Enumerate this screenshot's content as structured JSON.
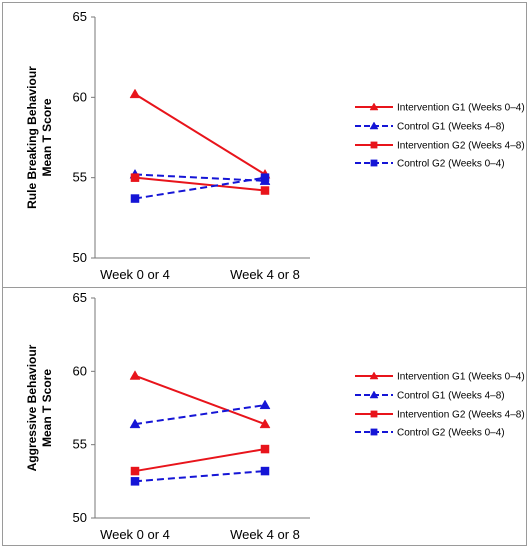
{
  "chart_data": [
    {
      "type": "line",
      "ylabel_line1": "Rule Breaking Behaviour",
      "ylabel_line2": "Mean T Score",
      "categories": [
        "Week 0 or 4",
        "Week 4 or 8"
      ],
      "ylim": [
        50,
        65
      ],
      "yticks": [
        50,
        55,
        60,
        65
      ],
      "grid": false,
      "legend_position": "right",
      "series": [
        {
          "name": "Intervention G1 (Weeks 0–4)",
          "values": [
            60.2,
            55.2
          ],
          "color": "#e8141b",
          "marker": "triangle",
          "dash": false
        },
        {
          "name": "Control G1 (Weeks 4–8)",
          "values": [
            55.2,
            54.8
          ],
          "color": "#1515d6",
          "marker": "triangle",
          "dash": true
        },
        {
          "name": "Intervention G2 (Weeks 4–8)",
          "values": [
            55.0,
            54.2
          ],
          "color": "#e8141b",
          "marker": "square",
          "dash": false
        },
        {
          "name": "Control G2 (Weeks 0–4)",
          "values": [
            53.7,
            55.0
          ],
          "color": "#1515d6",
          "marker": "square",
          "dash": true
        }
      ]
    },
    {
      "type": "line",
      "ylabel_line1": "Aggressive Behaviour",
      "ylabel_line2": "Mean T Score",
      "categories": [
        "Week 0 or 4",
        "Week 4 or 8"
      ],
      "ylim": [
        50,
        65
      ],
      "yticks": [
        50,
        55,
        60,
        65
      ],
      "grid": false,
      "legend_position": "right",
      "series": [
        {
          "name": "Intervention G1 (Weeks 0–4)",
          "values": [
            59.7,
            56.4
          ],
          "color": "#e8141b",
          "marker": "triangle",
          "dash": false
        },
        {
          "name": "Control G1 (Weeks 4–8)",
          "values": [
            56.4,
            57.7
          ],
          "color": "#1515d6",
          "marker": "triangle",
          "dash": true
        },
        {
          "name": "Intervention G2 (Weeks 4–8)",
          "values": [
            53.2,
            54.7
          ],
          "color": "#e8141b",
          "marker": "square",
          "dash": false
        },
        {
          "name": "Control G2 (Weeks 0–4)",
          "values": [
            52.5,
            53.2
          ],
          "color": "#1515d6",
          "marker": "square",
          "dash": true
        }
      ]
    }
  ]
}
